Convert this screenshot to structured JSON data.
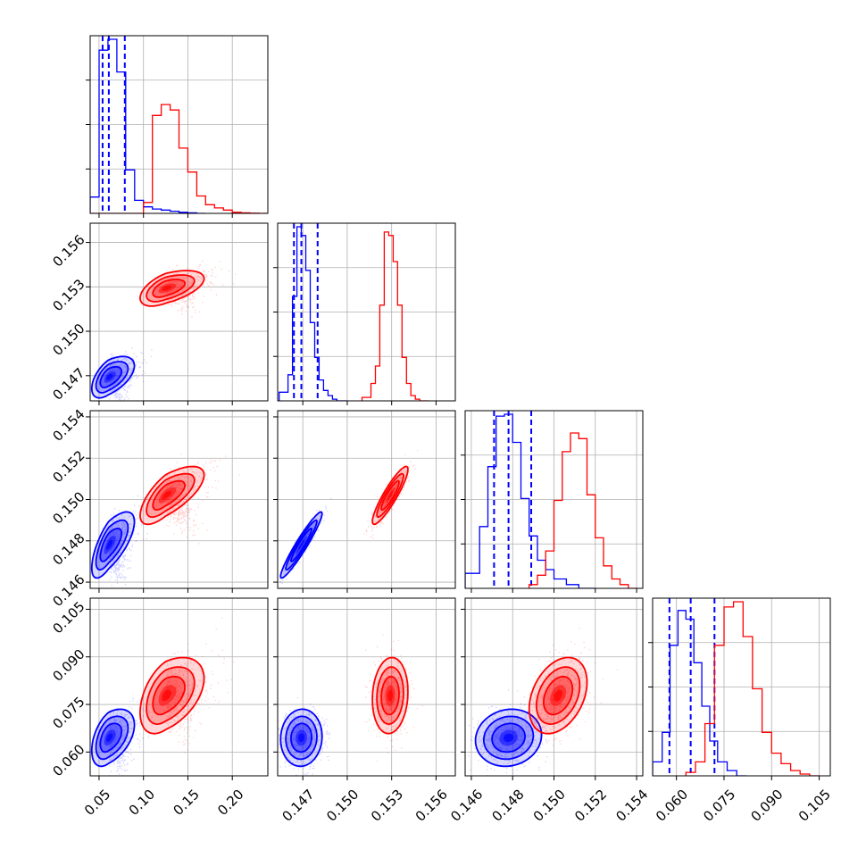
{
  "chart_data": {
    "type": "corner",
    "grid": true,
    "colors": {
      "series_a": "#0000ff",
      "series_b": "#ff0000"
    },
    "parameters": [
      {
        "range": [
          0.04,
          0.24
        ],
        "ticks": [
          "0.05",
          "0.10",
          "0.15",
          "0.20"
        ],
        "tick_values": [
          0.05,
          0.1,
          0.15,
          0.2
        ]
      },
      {
        "range": [
          0.1453,
          0.1573
        ],
        "ticks": [
          "0.147",
          "0.150",
          "0.153",
          "0.156"
        ],
        "tick_values": [
          0.147,
          0.15,
          0.153,
          0.156
        ]
      },
      {
        "range": [
          0.1457,
          0.1543
        ],
        "ticks": [
          "0.146",
          "0.148",
          "0.150",
          "0.152",
          "0.154"
        ],
        "tick_values": [
          0.146,
          0.148,
          0.15,
          0.152,
          0.154
        ]
      },
      {
        "range": [
          0.0525,
          0.1085
        ],
        "ticks": [
          "0.060",
          "0.075",
          "0.090",
          "0.105"
        ],
        "tick_values": [
          0.06,
          0.075,
          0.09,
          0.105
        ]
      }
    ],
    "series": [
      {
        "color": "#0000ff",
        "quantiles": [
          [
            0.054,
            0.061,
            0.079
          ],
          [
            0.1464,
            0.1469,
            0.148
          ],
          [
            0.1471,
            0.1478,
            0.1489
          ],
          [
            0.0578,
            0.0645,
            0.072
          ]
        ],
        "hist": [
          {
            "edges": [
              0.04,
              0.05,
              0.06,
              0.07,
              0.08,
              0.09,
              0.1,
              0.11,
              0.12,
              0.13,
              0.14,
              0.15,
              0.16,
              0.17
            ],
            "counts": [
              0.15,
              1.5,
              1.6,
              1.3,
              0.4,
              0.12,
              0.06,
              0.04,
              0.03,
              0.02,
              0.01,
              0.005,
              0.0
            ]
          },
          {
            "edges": [
              0.1454,
              0.146,
              0.1463,
              0.1466,
              0.1469,
              0.1472,
              0.1475,
              0.1478,
              0.1481,
              0.1484,
              0.1487,
              0.149,
              0.1493,
              0.15
            ],
            "counts": [
              0.05,
              0.15,
              0.6,
              1.0,
              0.95,
              0.75,
              0.45,
              0.25,
              0.12,
              0.06,
              0.03,
              0.01,
              0.0
            ]
          },
          {
            "edges": [
              0.1457,
              0.1464,
              0.1468,
              0.1472,
              0.1476,
              0.148,
              0.1484,
              0.1488,
              0.1492,
              0.1496,
              0.15,
              0.1506,
              0.1512,
              0.152
            ],
            "counts": [
              0.08,
              0.33,
              0.65,
              0.92,
              0.93,
              0.78,
              0.48,
              0.28,
              0.15,
              0.1,
              0.05,
              0.02,
              0.0
            ]
          },
          {
            "edges": [
              0.0525,
              0.0555,
              0.058,
              0.0605,
              0.063,
              0.0655,
              0.068,
              0.0705,
              0.073,
              0.076,
              0.079,
              0.082
            ],
            "counts": [
              0.08,
              0.25,
              0.75,
              0.95,
              0.9,
              0.65,
              0.4,
              0.2,
              0.08,
              0.03,
              0.0
            ]
          }
        ],
        "mean": [
          0.061,
          0.1469,
          0.1478,
          0.0645
        ],
        "sd": [
          0.012,
          0.0007,
          0.0008,
          0.0045
        ]
      },
      {
        "color": "#ff0000",
        "hist": [
          {
            "edges": [
              0.04,
              0.1,
              0.11,
              0.12,
              0.13,
              0.14,
              0.15,
              0.16,
              0.17,
              0.18,
              0.19,
              0.2,
              0.21,
              0.22,
              0.23,
              0.24
            ],
            "counts": [
              0.0,
              0.1,
              0.9,
              1.0,
              0.95,
              0.6,
              0.38,
              0.16,
              0.08,
              0.05,
              0.03,
              0.01,
              0.005,
              0.002,
              0.0
            ]
          },
          {
            "edges": [
              0.151,
              0.1516,
              0.1519,
              0.1522,
              0.1525,
              0.1528,
              0.1531,
              0.1534,
              0.1537,
              0.154,
              0.1543,
              0.1546,
              0.1549,
              0.1555
            ],
            "counts": [
              0.02,
              0.1,
              0.2,
              0.55,
              0.97,
              0.95,
              0.8,
              0.55,
              0.25,
              0.1,
              0.03,
              0.01,
              0.0
            ]
          },
          {
            "edges": [
              0.1488,
              0.1492,
              0.1496,
              0.15,
              0.1504,
              0.1508,
              0.1512,
              0.1516,
              0.152,
              0.1524,
              0.1528,
              0.1532,
              0.1536,
              0.154
            ],
            "counts": [
              0.02,
              0.07,
              0.2,
              0.47,
              0.73,
              0.83,
              0.8,
              0.5,
              0.27,
              0.12,
              0.05,
              0.02,
              0.0
            ]
          },
          {
            "edges": [
              0.063,
              0.066,
              0.069,
              0.072,
              0.075,
              0.078,
              0.081,
              0.084,
              0.087,
              0.09,
              0.093,
              0.096,
              0.099,
              0.102,
              0.105
            ],
            "counts": [
              0.02,
              0.08,
              0.3,
              0.75,
              0.97,
              1.0,
              0.8,
              0.5,
              0.25,
              0.13,
              0.07,
              0.03,
              0.01,
              0.0
            ]
          }
        ],
        "mean": [
          0.125,
          0.1529,
          0.1502,
          0.0778
        ],
        "sd": [
          0.018,
          0.0006,
          0.0007,
          0.006
        ]
      }
    ],
    "correlations": {
      "series_a": {
        "1-0": 0.55,
        "2-0": 0.7,
        "2-1": 0.95,
        "3-0": 0.45,
        "3-1": 0.05,
        "3-2": 0.1
      },
      "series_b": {
        "1-0": 0.55,
        "2-0": 0.7,
        "2-1": 0.9,
        "3-0": 0.45,
        "3-1": 0.1,
        "3-2": 0.35
      }
    }
  }
}
